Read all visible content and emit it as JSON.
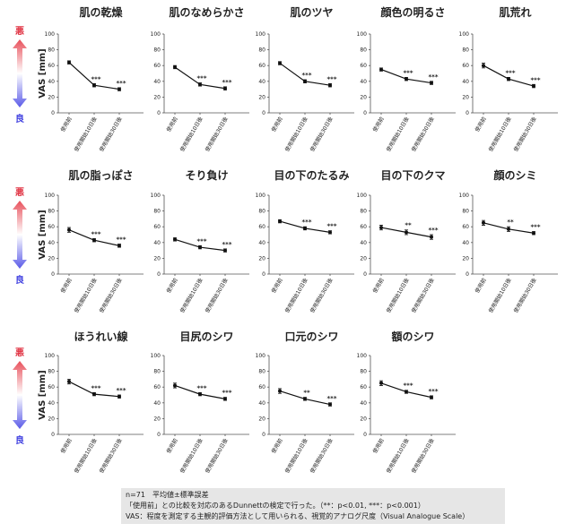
{
  "chart_data": [
    {
      "type": "line",
      "title": "肌の乾燥",
      "categories": [
        "使用前",
        "使用開始10日後",
        "使用開始30日後"
      ],
      "values": [
        64,
        35,
        30
      ],
      "errors": [
        2,
        2,
        2
      ],
      "annotations": [
        null,
        "***",
        "***"
      ],
      "ylim": [
        0,
        100
      ],
      "yticks": [
        0,
        20,
        40,
        60,
        80,
        100
      ],
      "color": "#111111"
    },
    {
      "type": "line",
      "title": "肌のなめらかさ",
      "categories": [
        "使用前",
        "使用開始10日後",
        "使用開始30日後"
      ],
      "values": [
        58,
        36,
        31
      ],
      "errors": [
        2,
        2,
        2
      ],
      "annotations": [
        null,
        "***",
        "***"
      ],
      "ylim": [
        0,
        100
      ],
      "yticks": [
        0,
        20,
        40,
        60,
        80,
        100
      ],
      "color": "#111111"
    },
    {
      "type": "line",
      "title": "肌のツヤ",
      "categories": [
        "使用前",
        "使用開始10日後",
        "使用開始30日後"
      ],
      "values": [
        63,
        40,
        35
      ],
      "errors": [
        2,
        2,
        2
      ],
      "annotations": [
        null,
        "***",
        "***"
      ],
      "ylim": [
        0,
        100
      ],
      "yticks": [
        0,
        20,
        40,
        60,
        80,
        100
      ],
      "color": "#111111"
    },
    {
      "type": "line",
      "title": "顔色の明るさ",
      "categories": [
        "使用前",
        "使用開始10日後",
        "使用開始30日後"
      ],
      "values": [
        55,
        43,
        38
      ],
      "errors": [
        2,
        2,
        2
      ],
      "annotations": [
        null,
        "***",
        "***"
      ],
      "ylim": [
        0,
        100
      ],
      "yticks": [
        0,
        20,
        40,
        60,
        80,
        100
      ],
      "color": "#111111"
    },
    {
      "type": "line",
      "title": "肌荒れ",
      "categories": [
        "使用前",
        "使用開始10日後",
        "使用開始30日後"
      ],
      "values": [
        60,
        43,
        34
      ],
      "errors": [
        3,
        2,
        2
      ],
      "annotations": [
        null,
        "***",
        "***"
      ],
      "ylim": [
        0,
        100
      ],
      "yticks": [
        0,
        20,
        40,
        60,
        80,
        100
      ],
      "color": "#111111"
    },
    {
      "type": "line",
      "title": "肌の脂っぽさ",
      "categories": [
        "使用前",
        "使用開始10日後",
        "使用開始30日後"
      ],
      "values": [
        56,
        43,
        36
      ],
      "errors": [
        3,
        2,
        2
      ],
      "annotations": [
        null,
        "***",
        "***"
      ],
      "ylim": [
        0,
        100
      ],
      "yticks": [
        0,
        20,
        40,
        60,
        80,
        100
      ],
      "color": "#111111"
    },
    {
      "type": "line",
      "title": "そり負け",
      "categories": [
        "使用前",
        "使用開始10日後",
        "使用開始30日後"
      ],
      "values": [
        44,
        34,
        30
      ],
      "errors": [
        2,
        2,
        2
      ],
      "annotations": [
        null,
        "***",
        "***"
      ],
      "ylim": [
        0,
        100
      ],
      "yticks": [
        0,
        20,
        40,
        60,
        80,
        100
      ],
      "color": "#111111"
    },
    {
      "type": "line",
      "title": "目の下のたるみ",
      "categories": [
        "使用前",
        "使用開始10日後",
        "使用開始30日後"
      ],
      "values": [
        67,
        58,
        53
      ],
      "errors": [
        2,
        2,
        2
      ],
      "annotations": [
        null,
        "***",
        "***"
      ],
      "ylim": [
        0,
        100
      ],
      "yticks": [
        0,
        20,
        40,
        60,
        80,
        100
      ],
      "color": "#111111"
    },
    {
      "type": "line",
      "title": "目の下のクマ",
      "categories": [
        "使用前",
        "使用開始10日後",
        "使用開始30日後"
      ],
      "values": [
        59,
        53,
        47
      ],
      "errors": [
        3,
        3,
        3
      ],
      "annotations": [
        null,
        "**",
        "***"
      ],
      "ylim": [
        0,
        100
      ],
      "yticks": [
        0,
        20,
        40,
        60,
        80,
        100
      ],
      "color": "#111111"
    },
    {
      "type": "line",
      "title": "顔のシミ",
      "categories": [
        "使用前",
        "使用開始10日後",
        "使用開始30日後"
      ],
      "values": [
        65,
        57,
        52
      ],
      "errors": [
        3,
        3,
        2
      ],
      "annotations": [
        null,
        "**",
        "***"
      ],
      "ylim": [
        0,
        100
      ],
      "yticks": [
        0,
        20,
        40,
        60,
        80,
        100
      ],
      "color": "#111111"
    },
    {
      "type": "line",
      "title": "ほうれい線",
      "categories": [
        "使用前",
        "使用開始10日後",
        "使用開始30日後"
      ],
      "values": [
        67,
        51,
        48
      ],
      "errors": [
        3,
        2,
        2
      ],
      "annotations": [
        null,
        "***",
        "***"
      ],
      "ylim": [
        0,
        100
      ],
      "yticks": [
        0,
        20,
        40,
        60,
        80,
        100
      ],
      "color": "#111111"
    },
    {
      "type": "line",
      "title": "目尻のシワ",
      "categories": [
        "使用前",
        "使用開始10日後",
        "使用開始30日後"
      ],
      "values": [
        62,
        51,
        45
      ],
      "errors": [
        3,
        2,
        2
      ],
      "annotations": [
        null,
        "***",
        "***"
      ],
      "ylim": [
        0,
        100
      ],
      "yticks": [
        0,
        20,
        40,
        60,
        80,
        100
      ],
      "color": "#111111"
    },
    {
      "type": "line",
      "title": "口元のシワ",
      "categories": [
        "使用前",
        "使用開始10日後",
        "使用開始30日後"
      ],
      "values": [
        55,
        45,
        38
      ],
      "errors": [
        3,
        2,
        2
      ],
      "annotations": [
        null,
        "**",
        "***"
      ],
      "ylim": [
        0,
        100
      ],
      "yticks": [
        0,
        20,
        40,
        60,
        80,
        100
      ],
      "color": "#111111"
    },
    {
      "type": "line",
      "title": "額のシワ",
      "categories": [
        "使用前",
        "使用開始10日後",
        "使用開始30日後"
      ],
      "values": [
        65,
        54,
        47
      ],
      "errors": [
        3,
        2,
        2
      ],
      "annotations": [
        null,
        "***",
        "***"
      ],
      "ylim": [
        0,
        100
      ],
      "yticks": [
        0,
        20,
        40,
        60,
        80,
        100
      ],
      "color": "#111111"
    }
  ],
  "rows": [
    {
      "ylabel": "VAS [mm]",
      "top": "悪",
      "bottom": "良"
    },
    {
      "ylabel": "VAS [mm]",
      "top": "悪",
      "bottom": "良"
    },
    {
      "ylabel": "VAS [mm]",
      "top": "悪",
      "bottom": "良"
    }
  ],
  "notes": [
    "n=71　平均値±標準誤差",
    "「使用前」との比較を対応のあるDunnettの検定で行った。（**：p<0.01, ***：p<0.001）",
    "VAS：程度を測定する主観的評価方法として用いられる、視覚的アナログ尺度（Visual Analogue Scale）"
  ]
}
